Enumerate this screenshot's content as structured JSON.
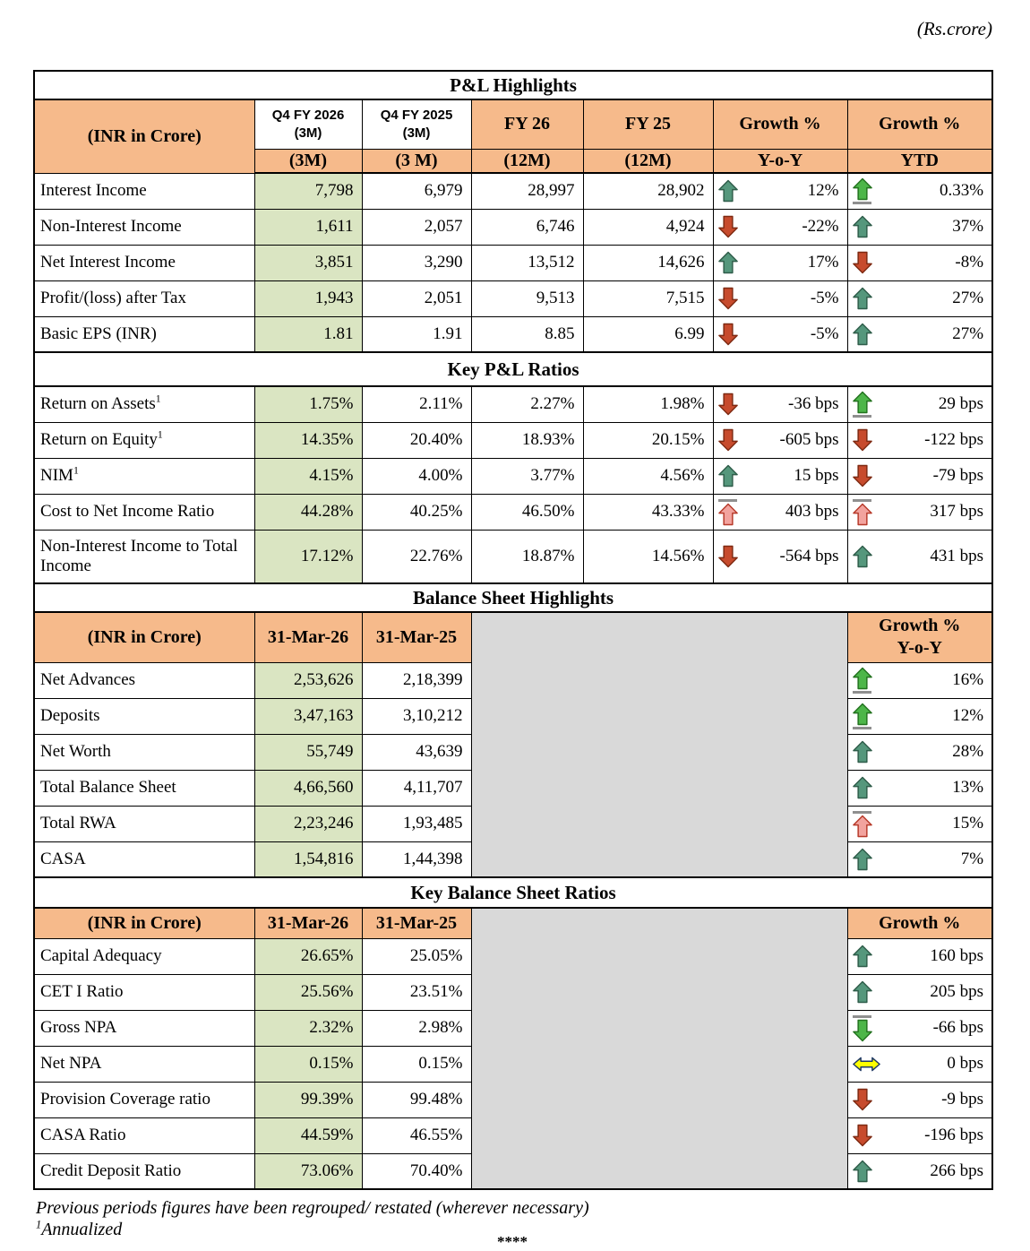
{
  "page": {
    "unit_note": "(Rs.crore)",
    "footnote1": "Previous periods figures have been regrouped/ restated (wherever necessary)",
    "footnote2_sup": "1",
    "footnote2": "Annualized",
    "end_mark": "****"
  },
  "colors": {
    "header_bg": "#F6BA8B",
    "highlight_col_bg": "#DAE5C2",
    "empty_area_bg": "#D9D9D9",
    "border": "#000000"
  },
  "icon_styles": {
    "teal": {
      "fill": "#55977C",
      "stroke": "#2F5D4A"
    },
    "red": {
      "fill": "#C74B2D",
      "stroke": "#7E2A12"
    },
    "green": {
      "fill": "#4DB649",
      "stroke": "#23731F"
    },
    "pink": {
      "fill": "#F2A39E",
      "stroke": "#B73A2A"
    },
    "yellow": {
      "fill": "#FFFF00",
      "stroke": "#1F3864"
    }
  },
  "pnl": {
    "title": "P&L Highlights",
    "header_row1": {
      "col1": "(INR in Crore)",
      "q4_fy2026": [
        "Q4 FY 2026",
        "(3M)"
      ],
      "q4_fy2025": [
        "Q4 FY 2025",
        "(3M)"
      ],
      "fy26": "FY 26",
      "fy25": "FY 25",
      "growth_yoy": "Growth %",
      "growth_ytd": "Growth %"
    },
    "header_row2": [
      "(3M)",
      "(3 M)",
      "(12M)",
      "(12M)",
      "Y-o-Y",
      "YTD"
    ],
    "rows": [
      {
        "label": "Interest Income",
        "q4_26": "7,798",
        "q4_25": "6,979",
        "fy26": "28,997",
        "fy25": "28,902",
        "yoy": {
          "dir": "up",
          "style": "teal",
          "line": null,
          "value": "12%"
        },
        "ytd": {
          "dir": "up",
          "style": "green",
          "line": "under",
          "value": "0.33%"
        }
      },
      {
        "label": "Non-Interest Income",
        "q4_26": "1,611",
        "q4_25": "2,057",
        "fy26": "6,746",
        "fy25": "4,924",
        "yoy": {
          "dir": "down",
          "style": "red",
          "line": null,
          "value": "-22%"
        },
        "ytd": {
          "dir": "up",
          "style": "teal",
          "line": null,
          "value": "37%"
        }
      },
      {
        "label": "Net Interest Income",
        "q4_26": "3,851",
        "q4_25": "3,290",
        "fy26": "13,512",
        "fy25": "14,626",
        "yoy": {
          "dir": "up",
          "style": "teal",
          "line": null,
          "value": "17%"
        },
        "ytd": {
          "dir": "down",
          "style": "red",
          "line": null,
          "value": "-8%"
        }
      },
      {
        "label": "Profit/(loss) after Tax",
        "q4_26": "1,943",
        "q4_25": "2,051",
        "fy26": "9,513",
        "fy25": "7,515",
        "yoy": {
          "dir": "down",
          "style": "red",
          "line": null,
          "value": "-5%"
        },
        "ytd": {
          "dir": "up",
          "style": "teal",
          "line": null,
          "value": "27%"
        }
      },
      {
        "label": "Basic EPS (INR)",
        "q4_26": "1.81",
        "q4_25": "1.91",
        "fy26": "8.85",
        "fy25": "6.99",
        "yoy": {
          "dir": "down",
          "style": "red",
          "line": null,
          "value": "-5%"
        },
        "ytd": {
          "dir": "up",
          "style": "teal",
          "line": null,
          "value": "27%"
        }
      }
    ]
  },
  "ratios": {
    "title": "Key P&L Ratios",
    "rows": [
      {
        "label": "Return on Assets",
        "sup": "1",
        "q4_26": "1.75%",
        "q4_25": "2.11%",
        "fy26": "2.27%",
        "fy25": "1.98%",
        "yoy": {
          "dir": "down",
          "style": "red",
          "line": null,
          "value": "-36 bps"
        },
        "ytd": {
          "dir": "up",
          "style": "green",
          "line": "under",
          "value": "29 bps"
        }
      },
      {
        "label": "Return on Equity",
        "sup": "1",
        "q4_26": "14.35%",
        "q4_25": "20.40%",
        "fy26": "18.93%",
        "fy25": "20.15%",
        "yoy": {
          "dir": "down",
          "style": "red",
          "line": null,
          "value": "-605 bps"
        },
        "ytd": {
          "dir": "down",
          "style": "red",
          "line": null,
          "value": "-122 bps"
        }
      },
      {
        "label": "NIM",
        "sup": "1",
        "q4_26": "4.15%",
        "q4_25": "4.00%",
        "fy26": "3.77%",
        "fy25": "4.56%",
        "yoy": {
          "dir": "up",
          "style": "teal",
          "line": null,
          "value": "15 bps"
        },
        "ytd": {
          "dir": "down",
          "style": "red",
          "line": null,
          "value": "-79 bps"
        }
      },
      {
        "label": "Cost to Net Income Ratio",
        "q4_26": "44.28%",
        "q4_25": "40.25%",
        "fy26": "46.50%",
        "fy25": "43.33%",
        "yoy": {
          "dir": "up",
          "style": "pink",
          "line": "over",
          "value": "403 bps"
        },
        "ytd": {
          "dir": "up",
          "style": "pink",
          "line": "over",
          "value": "317 bps"
        }
      },
      {
        "label": "Non-Interest Income to Total Income",
        "tall": true,
        "q4_26": "17.12%",
        "q4_25": "22.76%",
        "fy26": "18.87%",
        "fy25": "14.56%",
        "yoy": {
          "dir": "down",
          "style": "red",
          "line": null,
          "value": "-564 bps"
        },
        "ytd": {
          "dir": "up",
          "style": "teal",
          "line": null,
          "value": "431 bps"
        }
      }
    ]
  },
  "balance_sheet": {
    "title": "Balance Sheet Highlights",
    "header": {
      "col1": "(INR in Crore)",
      "c2": "31-Mar-26",
      "c3": "31-Mar-25",
      "growth": [
        "Growth %",
        "Y-o-Y"
      ]
    },
    "rows": [
      {
        "label": "Net Advances",
        "v1": "2,53,626",
        "v2": "2,18,399",
        "growth": {
          "dir": "up",
          "style": "green",
          "line": "under",
          "value": "16%"
        }
      },
      {
        "label": "Deposits",
        "v1": "3,47,163",
        "v2": "3,10,212",
        "growth": {
          "dir": "up",
          "style": "green",
          "line": "under",
          "value": "12%"
        }
      },
      {
        "label": "Net Worth",
        "v1": "55,749",
        "v2": "43,639",
        "growth": {
          "dir": "up",
          "style": "teal",
          "line": null,
          "value": "28%"
        }
      },
      {
        "label": "Total Balance Sheet",
        "v1": "4,66,560",
        "v2": "4,11,707",
        "growth": {
          "dir": "up",
          "style": "teal",
          "line": null,
          "value": "13%"
        }
      },
      {
        "label": "Total RWA",
        "v1": "2,23,246",
        "v2": "1,93,485",
        "growth": {
          "dir": "up",
          "style": "pink",
          "line": "over",
          "value": "15%"
        }
      },
      {
        "label": "CASA",
        "v1": "1,54,816",
        "v2": "1,44,398",
        "growth": {
          "dir": "up",
          "style": "teal",
          "line": null,
          "value": "7%"
        }
      }
    ]
  },
  "bs_ratios": {
    "title": "Key Balance Sheet Ratios",
    "header": {
      "col1": "(INR in Crore)",
      "c2": "31-Mar-26",
      "c3": "31-Mar-25",
      "growth": "Growth %"
    },
    "rows": [
      {
        "label": "Capital Adequacy",
        "v1": "26.65%",
        "v2": "25.05%",
        "growth": {
          "dir": "up",
          "style": "teal",
          "line": null,
          "value": "160 bps"
        }
      },
      {
        "label": "CET I Ratio",
        "v1": "25.56%",
        "v2": "23.51%",
        "growth": {
          "dir": "up",
          "style": "teal",
          "line": null,
          "value": "205 bps"
        }
      },
      {
        "label": "Gross NPA",
        "v1": "2.32%",
        "v2": "2.98%",
        "growth": {
          "dir": "down",
          "style": "green",
          "line": "over",
          "value": "-66 bps"
        }
      },
      {
        "label": "Net NPA",
        "v1": "0.15%",
        "v2": "0.15%",
        "growth": {
          "dir": "flat",
          "style": "yellow",
          "line": null,
          "value": "0 bps"
        }
      },
      {
        "label": "Provision Coverage ratio",
        "v1": "99.39%",
        "v2": "99.48%",
        "growth": {
          "dir": "down",
          "style": "red",
          "line": null,
          "value": "-9 bps"
        }
      },
      {
        "label": "CASA Ratio",
        "v1": "44.59%",
        "v2": "46.55%",
        "growth": {
          "dir": "down",
          "style": "red",
          "line": null,
          "value": "-196 bps"
        }
      },
      {
        "label": "Credit Deposit Ratio",
        "v1": "73.06%",
        "v2": "70.40%",
        "growth": {
          "dir": "up",
          "style": "teal",
          "line": null,
          "value": "266 bps"
        }
      }
    ]
  }
}
